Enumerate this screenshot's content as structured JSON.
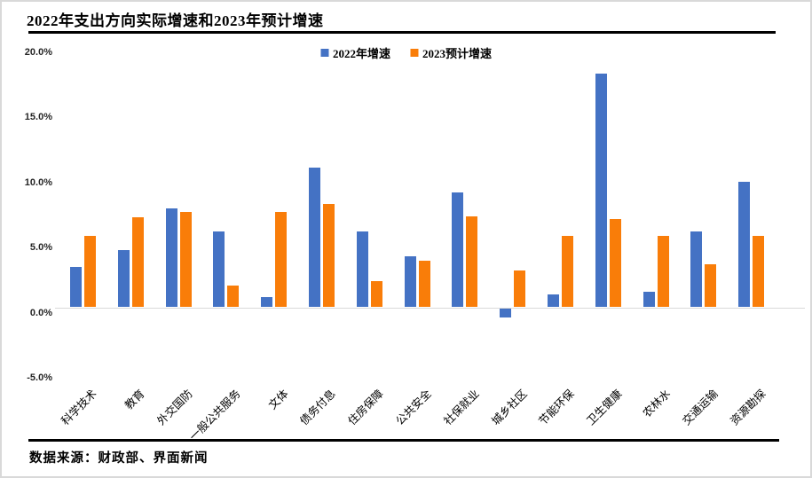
{
  "header": {
    "title": "2022年支出方向实际增速和2023年预计增速"
  },
  "footer": {
    "source": "数据来源：财政部、界面新闻"
  },
  "colors": {
    "series_2022": "#4472c4",
    "series_2023": "#f97d09",
    "zero_line": "#d9d9d9",
    "rule": "#000000"
  },
  "chart_data": {
    "type": "bar",
    "title": "2022年支出方向实际增速和2023年预计增速",
    "categories": [
      "科学技术",
      "教育",
      "外交国防",
      "一般公共服务",
      "文体",
      "债务付息",
      "住房保障",
      "公共安全",
      "社保就业",
      "城乡社区",
      "节能环保",
      "卫生健康",
      "农林水",
      "交通运输",
      "资源勘探"
    ],
    "series": [
      {
        "name": "2022年增速",
        "color": "#4472c4",
        "values": [
          3.1,
          4.4,
          7.6,
          5.8,
          0.8,
          10.7,
          5.8,
          3.9,
          8.8,
          -0.7,
          1.0,
          17.9,
          1.2,
          5.8,
          9.6
        ]
      },
      {
        "name": "2023预计增速",
        "color": "#f97d09",
        "values": [
          5.5,
          6.9,
          7.3,
          1.7,
          7.3,
          7.9,
          2.0,
          3.6,
          7.0,
          2.8,
          5.5,
          6.8,
          5.5,
          3.3,
          5.5
        ]
      }
    ],
    "ylabel": "",
    "xlabel": "",
    "ylim": [
      -5,
      20
    ],
    "yticks": [
      "20.0%",
      "15.0%",
      "10.0%",
      "5.0%",
      "0.0%",
      "-5.0%"
    ],
    "ytick_values": [
      20,
      15,
      10,
      5,
      0,
      -5
    ],
    "grid": false,
    "legend_position": "top-center"
  }
}
